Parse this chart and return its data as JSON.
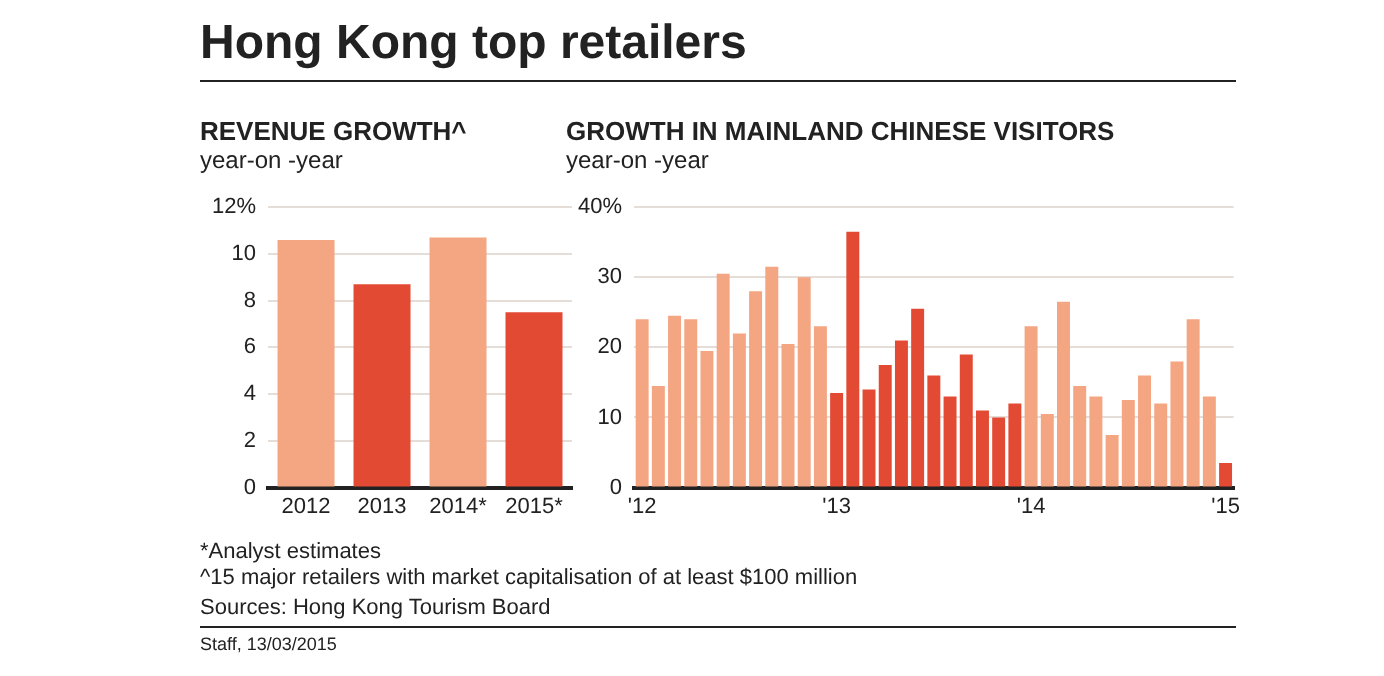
{
  "chart_data": [
    {
      "type": "other",
      "title": "Hong Kong top retailers",
      "annotations": [
        "*Analyst estimates",
        "^15 major retailers with market capitalisation of at least $100 million",
        "Sources: Hong Kong Tourism Board",
        "Staff, 13/03/2015"
      ]
    },
    {
      "type": "bar",
      "title": "REVENUE GROWTH^",
      "subtitle": "year-on -year",
      "categories": [
        "2012",
        "2013",
        "2014*",
        "2015*"
      ],
      "values": [
        10.6,
        8.7,
        10.7,
        7.5
      ],
      "colors": [
        "#f4a582",
        "#e34a33",
        "#f4a582",
        "#e34a33"
      ],
      "ylim": [
        0,
        12
      ],
      "yticks": [
        0,
        2,
        4,
        6,
        8,
        10,
        {
          "value": 12,
          "label": "12%"
        }
      ],
      "grid": "y",
      "legend": false
    },
    {
      "type": "bar",
      "title": "GROWTH IN MAINLAND CHINESE VISITORS",
      "subtitle": "year-on -year",
      "categories": [
        "'12",
        null,
        null,
        null,
        null,
        null,
        null,
        null,
        null,
        null,
        null,
        null,
        "'13",
        null,
        null,
        null,
        null,
        null,
        null,
        null,
        null,
        null,
        null,
        null,
        "'14",
        null,
        null,
        null,
        null,
        null,
        null,
        null,
        null,
        null,
        null,
        null,
        "'15"
      ],
      "values": [
        24,
        14.5,
        24.5,
        24,
        19.5,
        30.5,
        22,
        28,
        31.5,
        20.5,
        30,
        23,
        13.5,
        36.5,
        14,
        17.5,
        21,
        25.5,
        16,
        13,
        19,
        11,
        10,
        12,
        23,
        10.5,
        26.5,
        14.5,
        13,
        7.5,
        12.5,
        16,
        12,
        18,
        24,
        13,
        3.5
      ],
      "colors": [
        "#f4a582",
        "#f4a582",
        "#f4a582",
        "#f4a582",
        "#f4a582",
        "#f4a582",
        "#f4a582",
        "#f4a582",
        "#f4a582",
        "#f4a582",
        "#f4a582",
        "#f4a582",
        "#e34a33",
        "#e34a33",
        "#e34a33",
        "#e34a33",
        "#e34a33",
        "#e34a33",
        "#e34a33",
        "#e34a33",
        "#e34a33",
        "#e34a33",
        "#e34a33",
        "#e34a33",
        "#f4a582",
        "#f4a582",
        "#f4a582",
        "#f4a582",
        "#f4a582",
        "#f4a582",
        "#f4a582",
        "#f4a582",
        "#f4a582",
        "#f4a582",
        "#f4a582",
        "#f4a582",
        "#e34a33"
      ],
      "ylim": [
        0,
        40
      ],
      "yticks": [
        0,
        10,
        20,
        30,
        {
          "value": 40,
          "label": "40%"
        }
      ],
      "grid": "y",
      "legend": false
    }
  ]
}
